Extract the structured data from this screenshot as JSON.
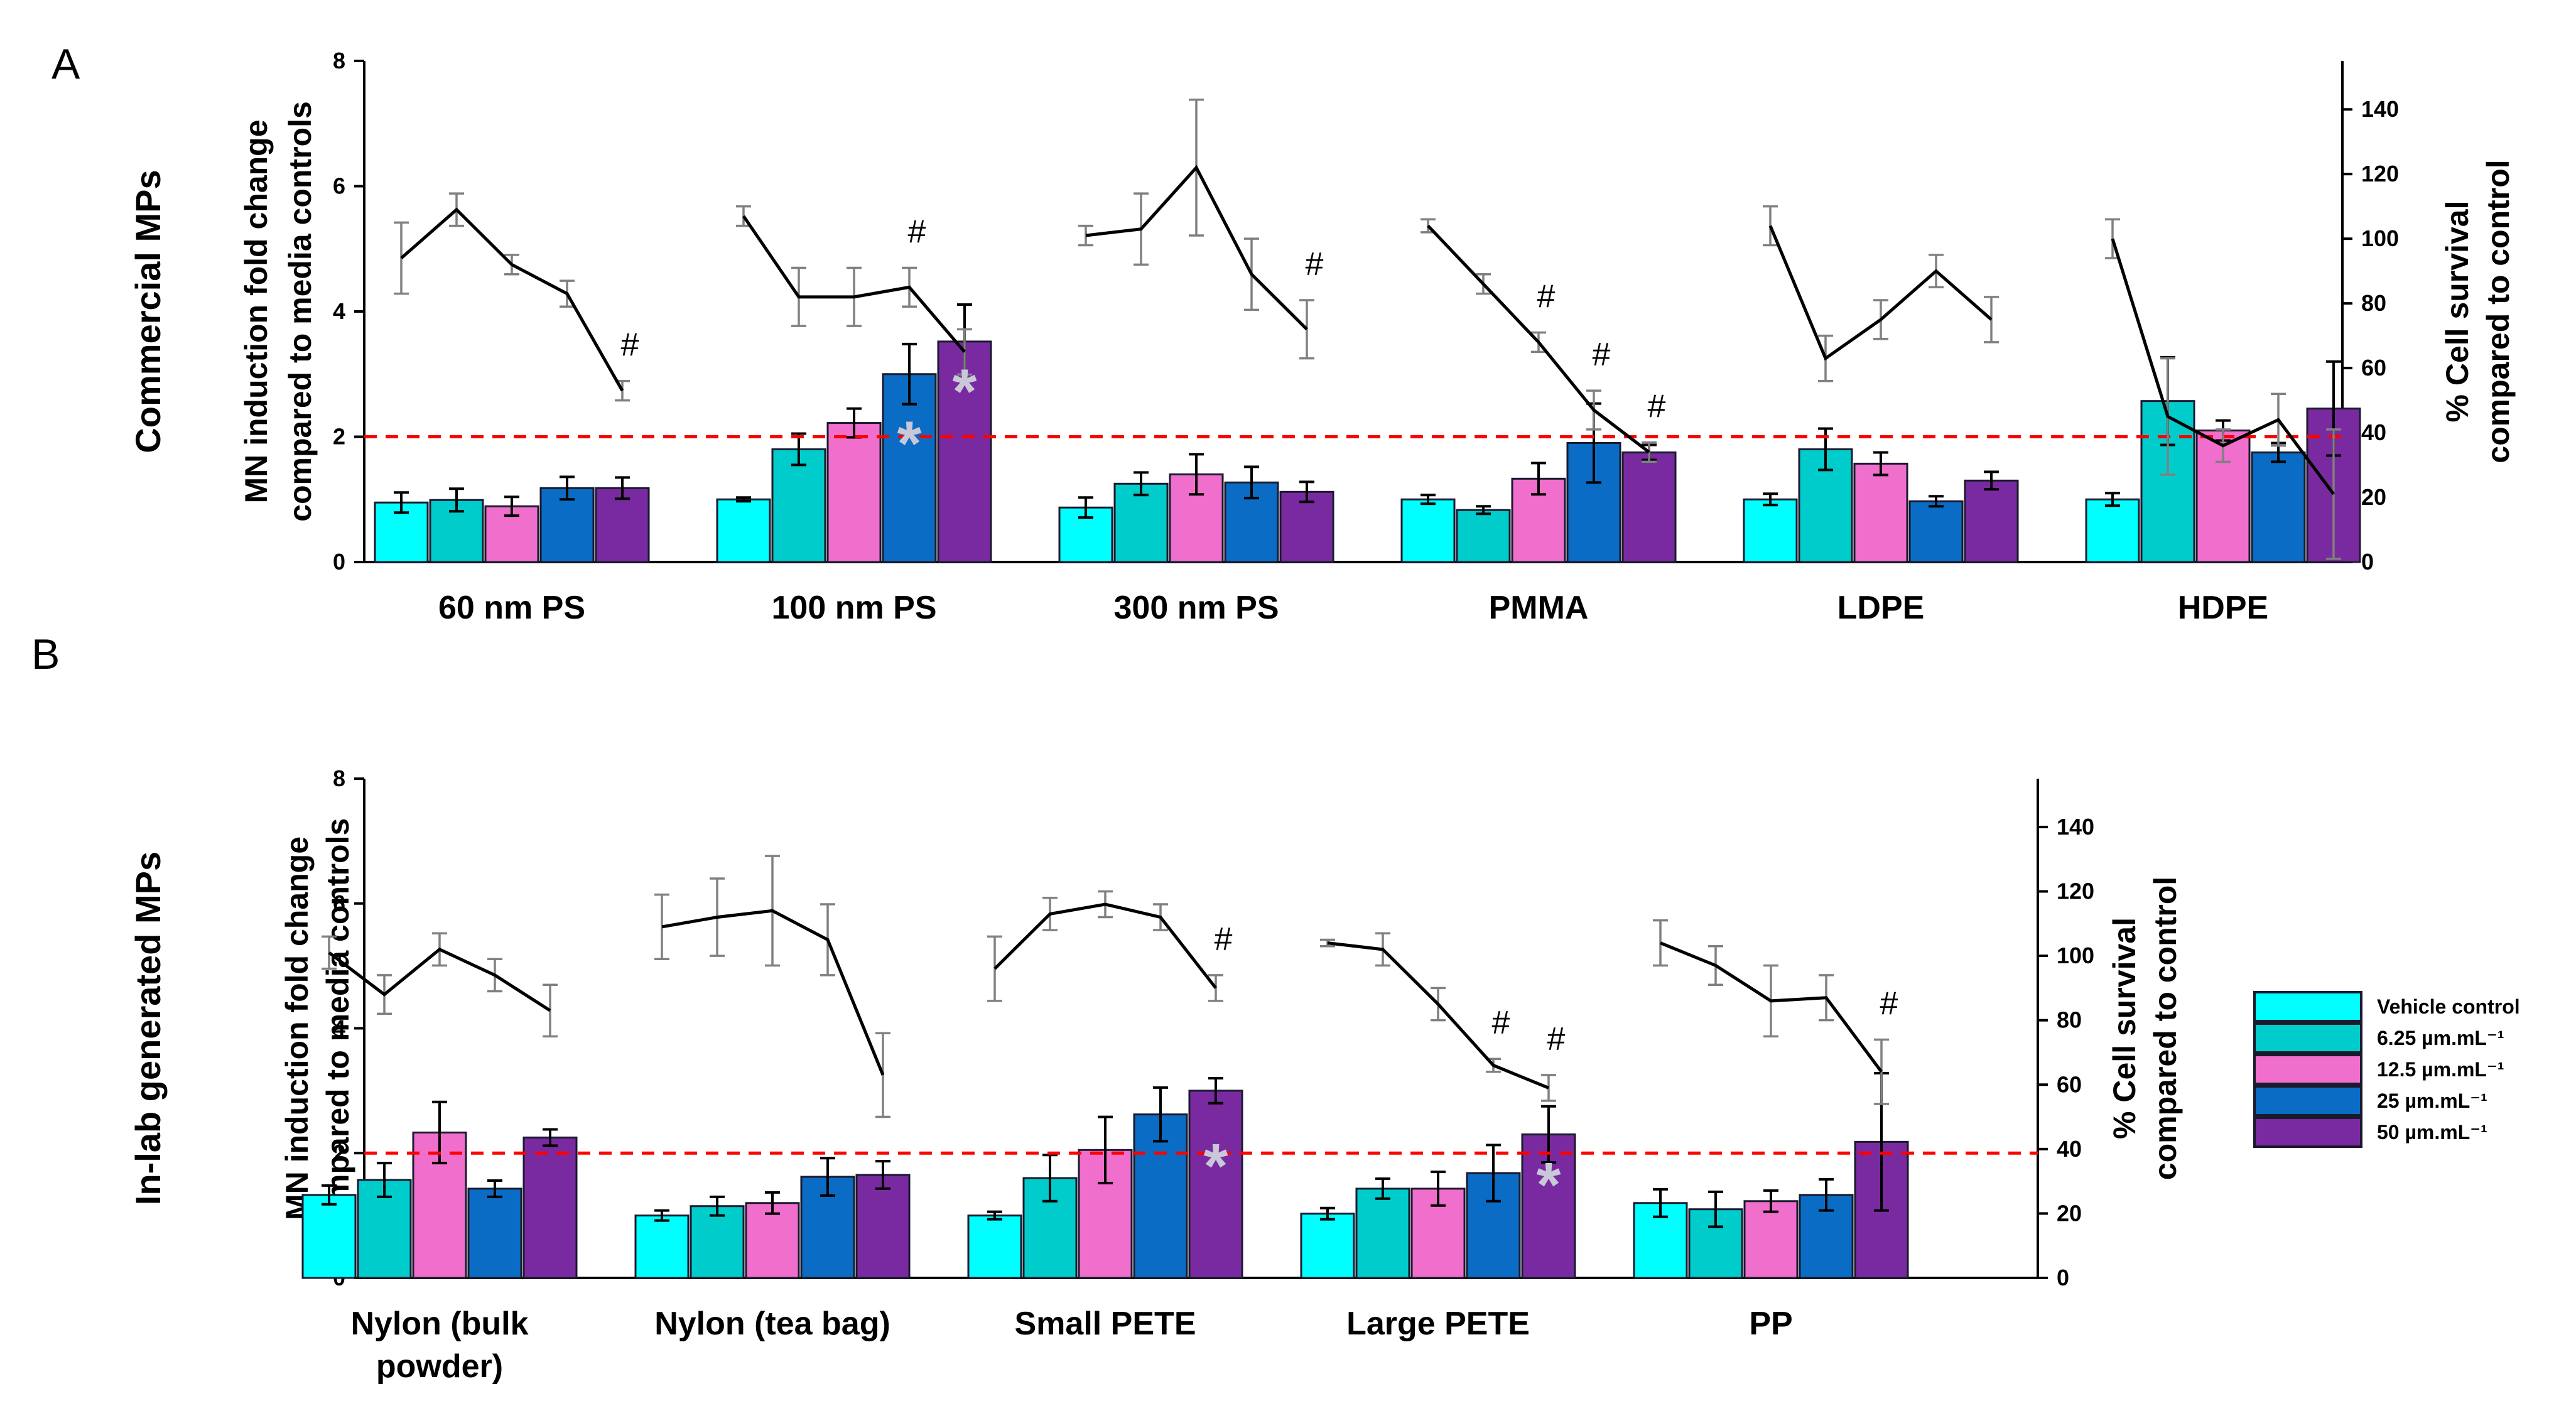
{
  "figure": {
    "type": "bar",
    "secondary_type": "line",
    "legend_title": "",
    "legend_entries": [
      {
        "label": "Vehicle control",
        "color": "#00FFFF"
      },
      {
        "label": "6.25 µm.mL⁻¹",
        "color": "#00CCCC"
      },
      {
        "label": "12.5 µm.mL⁻¹",
        "color": "#F06ECC"
      },
      {
        "label": "25 µm.mL⁻¹",
        "color": "#0A6CC4"
      },
      {
        "label": "50 µm.mL⁻¹",
        "color": "#7A2AA0"
      }
    ],
    "line_color": "#000000",
    "threshold_color": "#FF0000",
    "line_errorbar_color": "#808080",
    "significance_asterisk_color": "#C8C8D8"
  },
  "chart_data": [
    {
      "panel": "A",
      "title": "Commercial MPs",
      "ylabel_left": [
        "MN induction fold change",
        "compared to media controls"
      ],
      "ylabel_right": [
        "% Cell survival",
        "compared to control"
      ],
      "ylim_left": [
        0,
        8
      ],
      "yticks_left": [
        "0",
        "2",
        "4",
        "6",
        "8"
      ],
      "ylim_right": [
        0,
        155
      ],
      "yticks_right": [
        "0",
        "20",
        "40",
        "60",
        "80",
        "100",
        "120",
        "140"
      ],
      "threshold": 2,
      "categories": [
        [
          "60 nm PS"
        ],
        [
          "100 nm PS"
        ],
        [
          "300 nm PS"
        ],
        [
          "PMMA"
        ],
        [
          "LDPE"
        ],
        [
          "HDPE"
        ]
      ],
      "series": [
        {
          "name": "Vehicle control",
          "values": [
            0.95,
            1.0,
            0.87,
            1.0,
            1.0,
            1.0
          ],
          "errors": [
            0.16,
            0.03,
            0.16,
            0.07,
            0.09,
            0.1
          ]
        },
        {
          "name": "6.25 µm.mL⁻¹",
          "values": [
            0.99,
            1.8,
            1.25,
            0.83,
            1.8,
            2.57
          ],
          "errors": [
            0.18,
            0.25,
            0.18,
            0.06,
            0.33,
            0.7
          ]
        },
        {
          "name": "12.5 µm.mL⁻¹",
          "values": [
            0.89,
            2.22,
            1.4,
            1.33,
            1.57,
            2.1
          ],
          "errors": [
            0.15,
            0.23,
            0.32,
            0.25,
            0.18,
            0.16
          ]
        },
        {
          "name": "25 µm.mL⁻¹",
          "values": [
            1.18,
            3.0,
            1.27,
            1.9,
            0.97,
            1.75
          ],
          "errors": [
            0.18,
            0.48,
            0.25,
            0.63,
            0.08,
            0.15
          ]
        },
        {
          "name": "50 µm.mL⁻¹",
          "values": [
            1.18,
            3.52,
            1.12,
            1.75,
            1.3,
            2.45
          ],
          "errors": [
            0.17,
            0.59,
            0.16,
            0.12,
            0.14,
            0.75
          ]
        }
      ],
      "survival": [
        {
          "category": "60 nm PS",
          "values": [
            94,
            109,
            92,
            83,
            53
          ],
          "errors": [
            11,
            5,
            3,
            4,
            3
          ]
        },
        {
          "category": "100 nm PS",
          "values": [
            107,
            82,
            82,
            85,
            65
          ],
          "errors": [
            3,
            9,
            9,
            6,
            7
          ]
        },
        {
          "category": "300 nm PS",
          "values": [
            101,
            103,
            122,
            89,
            72
          ],
          "errors": [
            3,
            11,
            21,
            11,
            9
          ]
        },
        {
          "category": "PMMA",
          "values": [
            104,
            86,
            68,
            47,
            34
          ],
          "errors": [
            2,
            3,
            3,
            6,
            3
          ]
        },
        {
          "category": "LDPE",
          "values": [
            104,
            63,
            75,
            90,
            75
          ],
          "errors": [
            6,
            7,
            6,
            5,
            7
          ]
        },
        {
          "category": "HDPE",
          "values": [
            100,
            45,
            36,
            44,
            21
          ],
          "errors": [
            6,
            18,
            5,
            8,
            20
          ]
        }
      ],
      "hash_marks": [
        {
          "group": 0,
          "bar": 4,
          "label": "#"
        },
        {
          "group": 1,
          "bar": 3,
          "label": "#"
        },
        {
          "group": 2,
          "bar": 4,
          "label": "#"
        },
        {
          "group": 3,
          "bar": 2,
          "label": "#"
        },
        {
          "group": 3,
          "bar": 3,
          "label": "#"
        },
        {
          "group": 3,
          "bar": 4,
          "label": "#"
        }
      ],
      "asterisks": [
        {
          "group": 1,
          "bar": 3,
          "value": 1.95,
          "label": "*"
        },
        {
          "group": 1,
          "bar": 4,
          "value": 2.78,
          "label": "*"
        }
      ]
    },
    {
      "panel": "B",
      "title": "In-lab generated MPs",
      "ylabel_left": [
        "MN induction fold change",
        "compared to media controls"
      ],
      "ylabel_right": [
        "% Cell survival",
        "compared to control"
      ],
      "ylim_left": [
        0,
        8
      ],
      "yticks_left": [
        "0",
        "2",
        "4",
        "6",
        "8"
      ],
      "ylim_right": [
        0,
        155
      ],
      "yticks_right": [
        "0",
        "20",
        "40",
        "60",
        "80",
        "100",
        "120",
        "140"
      ],
      "threshold": 2,
      "categories": [
        [
          "Nylon (bulk",
          "powder)"
        ],
        [
          "Nylon (tea bag)"
        ],
        [
          "Small PETE"
        ],
        [
          "Large PETE"
        ],
        [
          "PP"
        ]
      ],
      "series": [
        {
          "name": "Vehicle control",
          "values": [
            1.33,
            1.0,
            1.0,
            1.03,
            1.2
          ],
          "errors": [
            0.15,
            0.08,
            0.06,
            0.09,
            0.22
          ]
        },
        {
          "name": "6.25 µm.mL⁻¹",
          "values": [
            1.57,
            1.15,
            1.6,
            1.43,
            1.1
          ],
          "errors": [
            0.27,
            0.15,
            0.37,
            0.16,
            0.28
          ]
        },
        {
          "name": "12.5 µm.mL⁻¹",
          "values": [
            2.33,
            1.2,
            2.05,
            1.43,
            1.23
          ],
          "errors": [
            0.49,
            0.17,
            0.53,
            0.27,
            0.17
          ]
        },
        {
          "name": "25 µm.mL⁻¹",
          "values": [
            1.43,
            1.62,
            2.62,
            1.68,
            1.33
          ],
          "errors": [
            0.13,
            0.3,
            0.43,
            0.45,
            0.25
          ]
        },
        {
          "name": "50 µm.mL⁻¹",
          "values": [
            2.25,
            1.65,
            3.0,
            2.3,
            2.18
          ],
          "errors": [
            0.13,
            0.22,
            0.2,
            0.45,
            1.1
          ]
        }
      ],
      "survival": [
        {
          "category": "Nylon (bulk powder)",
          "values": [
            101,
            88,
            102,
            94,
            83
          ],
          "errors": [
            5,
            6,
            5,
            5,
            8
          ]
        },
        {
          "category": "Nylon (tea bag)",
          "values": [
            109,
            112,
            114,
            105,
            63
          ],
          "errors": [
            10,
            12,
            17,
            11,
            13
          ]
        },
        {
          "category": "Small PETE",
          "values": [
            96,
            113,
            116,
            112,
            90
          ],
          "errors": [
            10,
            5,
            4,
            4,
            4
          ]
        },
        {
          "category": "Large PETE",
          "values": [
            104,
            102,
            85,
            66,
            59
          ],
          "errors": [
            1,
            5,
            5,
            2,
            4
          ]
        },
        {
          "category": "PP",
          "values": [
            104,
            97,
            86,
            87,
            64
          ],
          "errors": [
            7,
            6,
            11,
            7,
            10
          ]
        }
      ],
      "hash_marks": [
        {
          "group": 2,
          "bar": 4,
          "label": "#"
        },
        {
          "group": 3,
          "bar": 3,
          "label": "#"
        },
        {
          "group": 3,
          "bar": 4,
          "label": "#"
        },
        {
          "group": 4,
          "bar": 4,
          "label": "#"
        }
      ],
      "asterisks": [
        {
          "group": 2,
          "bar": 4,
          "value": 1.85,
          "label": "*"
        },
        {
          "group": 3,
          "bar": 4,
          "value": 1.55,
          "label": "*"
        }
      ]
    }
  ]
}
